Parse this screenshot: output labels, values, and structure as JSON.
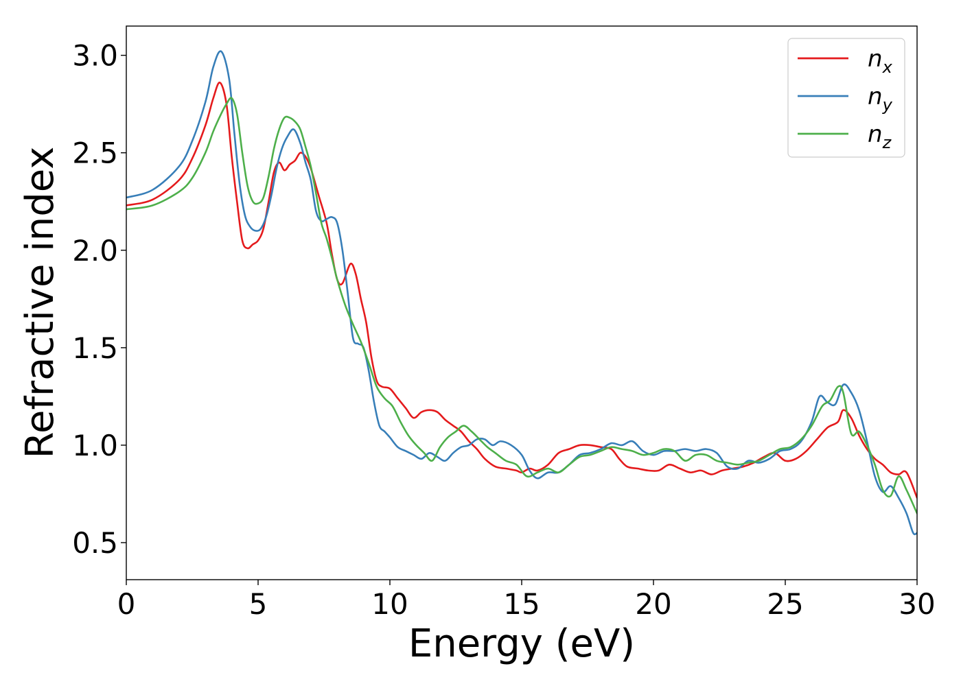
{
  "chart_data": {
    "type": "line",
    "title": "",
    "xlabel": "Energy (eV)",
    "ylabel": "Refractive index",
    "xlim": [
      0,
      30
    ],
    "ylim": [
      0.31,
      3.15
    ],
    "xticks": [
      0,
      5,
      10,
      15,
      20,
      25,
      30
    ],
    "xtick_labels": [
      "0",
      "5",
      "10",
      "15",
      "20",
      "25",
      "30"
    ],
    "yticks": [
      0.5,
      1.0,
      1.5,
      2.0,
      2.5,
      3.0
    ],
    "ytick_labels": [
      "0.5",
      "1.0",
      "1.5",
      "2.0",
      "2.5",
      "3.0"
    ],
    "grid": false,
    "legend_position": "top-right",
    "series": [
      {
        "name": "n",
        "subscript": "x",
        "color": "#e41a1c",
        "x": [
          0,
          1,
          2,
          2.5,
          3,
          3.3,
          3.55,
          3.8,
          4.0,
          4.2,
          4.4,
          4.6,
          4.8,
          5.0,
          5.2,
          5.4,
          5.6,
          5.8,
          6.0,
          6.2,
          6.4,
          6.6,
          6.8,
          7.0,
          7.3,
          7.6,
          7.8,
          8.0,
          8.2,
          8.5,
          8.7,
          8.9,
          9.1,
          9.3,
          9.5,
          9.7,
          10.0,
          10.3,
          10.6,
          10.9,
          11.2,
          11.5,
          11.8,
          12.1,
          12.4,
          12.7,
          13.0,
          13.3,
          13.6,
          14.0,
          14.4,
          14.8,
          15.0,
          15.3,
          15.6,
          16.0,
          16.4,
          16.8,
          17.2,
          17.6,
          18.0,
          18.4,
          18.7,
          19.0,
          19.4,
          19.8,
          20.2,
          20.6,
          21.0,
          21.4,
          21.8,
          22.2,
          22.6,
          23.0,
          23.4,
          23.8,
          24.2,
          24.6,
          25.0,
          25.4,
          25.8,
          26.2,
          26.6,
          27.0,
          27.2,
          27.5,
          27.8,
          28.1,
          28.4,
          28.7,
          29.0,
          29.3,
          29.6,
          30.0
        ],
        "y": [
          2.23,
          2.26,
          2.36,
          2.47,
          2.64,
          2.78,
          2.86,
          2.75,
          2.48,
          2.25,
          2.05,
          2.01,
          2.03,
          2.05,
          2.11,
          2.25,
          2.4,
          2.45,
          2.41,
          2.44,
          2.46,
          2.5,
          2.48,
          2.42,
          2.28,
          2.14,
          1.98,
          1.85,
          1.83,
          1.93,
          1.88,
          1.75,
          1.63,
          1.45,
          1.33,
          1.3,
          1.29,
          1.24,
          1.19,
          1.14,
          1.17,
          1.18,
          1.17,
          1.13,
          1.1,
          1.07,
          1.02,
          0.98,
          0.93,
          0.89,
          0.88,
          0.87,
          0.86,
          0.88,
          0.87,
          0.9,
          0.96,
          0.98,
          1.0,
          1.0,
          0.99,
          0.98,
          0.93,
          0.89,
          0.88,
          0.87,
          0.87,
          0.9,
          0.88,
          0.86,
          0.87,
          0.85,
          0.87,
          0.88,
          0.89,
          0.91,
          0.94,
          0.96,
          0.92,
          0.93,
          0.97,
          1.03,
          1.09,
          1.12,
          1.18,
          1.14,
          1.05,
          0.98,
          0.93,
          0.9,
          0.86,
          0.85,
          0.86,
          0.73
        ]
      },
      {
        "name": "n",
        "subscript": "y",
        "color": "#377eb8",
        "x": [
          0,
          1,
          2,
          2.5,
          3,
          3.3,
          3.6,
          3.9,
          4.1,
          4.3,
          4.5,
          4.7,
          4.9,
          5.1,
          5.3,
          5.5,
          5.7,
          5.9,
          6.1,
          6.35,
          6.6,
          6.8,
          7.0,
          7.2,
          7.4,
          7.6,
          7.8,
          8.0,
          8.2,
          8.4,
          8.6,
          8.8,
          9.0,
          9.2,
          9.4,
          9.6,
          9.8,
          10.0,
          10.3,
          10.6,
          10.9,
          11.2,
          11.5,
          11.8,
          12.1,
          12.4,
          12.7,
          13.0,
          13.3,
          13.6,
          13.9,
          14.2,
          14.6,
          15.0,
          15.3,
          15.6,
          16.0,
          16.4,
          16.8,
          17.2,
          17.6,
          18.0,
          18.4,
          18.8,
          19.2,
          19.6,
          20.0,
          20.4,
          20.8,
          21.2,
          21.6,
          22.0,
          22.4,
          22.8,
          23.2,
          23.6,
          24.0,
          24.4,
          24.8,
          25.2,
          25.6,
          26.0,
          26.3,
          26.6,
          26.9,
          27.2,
          27.5,
          27.8,
          28.1,
          28.4,
          28.7,
          29.0,
          29.3,
          29.6,
          29.85,
          30.0
        ],
        "y": [
          2.27,
          2.31,
          2.43,
          2.56,
          2.76,
          2.94,
          3.02,
          2.88,
          2.6,
          2.34,
          2.18,
          2.12,
          2.1,
          2.11,
          2.17,
          2.28,
          2.42,
          2.52,
          2.58,
          2.62,
          2.55,
          2.45,
          2.36,
          2.2,
          2.15,
          2.16,
          2.17,
          2.14,
          2.0,
          1.78,
          1.55,
          1.52,
          1.5,
          1.38,
          1.22,
          1.1,
          1.07,
          1.04,
          0.99,
          0.97,
          0.95,
          0.93,
          0.96,
          0.94,
          0.92,
          0.96,
          0.99,
          1.0,
          1.03,
          1.03,
          1.0,
          1.02,
          1.0,
          0.95,
          0.87,
          0.83,
          0.86,
          0.86,
          0.9,
          0.95,
          0.96,
          0.98,
          1.01,
          1.0,
          1.02,
          0.97,
          0.95,
          0.97,
          0.97,
          0.98,
          0.97,
          0.98,
          0.96,
          0.89,
          0.88,
          0.92,
          0.91,
          0.93,
          0.97,
          0.98,
          1.02,
          1.12,
          1.25,
          1.22,
          1.21,
          1.31,
          1.27,
          1.18,
          1.02,
          0.84,
          0.76,
          0.79,
          0.73,
          0.65,
          0.55,
          0.55
        ]
      },
      {
        "name": "n",
        "subscript": "z",
        "color": "#4daf4a",
        "x": [
          0,
          1,
          2,
          2.5,
          3,
          3.3,
          3.6,
          3.8,
          4.0,
          4.2,
          4.4,
          4.6,
          4.8,
          5.0,
          5.2,
          5.4,
          5.6,
          5.8,
          6.0,
          6.2,
          6.4,
          6.6,
          6.8,
          7.0,
          7.2,
          7.4,
          7.6,
          7.8,
          8.0,
          8.3,
          8.6,
          8.9,
          9.2,
          9.5,
          9.8,
          10.1,
          10.4,
          10.7,
          11.0,
          11.3,
          11.6,
          11.9,
          12.2,
          12.5,
          12.8,
          13.1,
          13.4,
          13.7,
          14.0,
          14.4,
          14.8,
          15.2,
          15.6,
          16.0,
          16.4,
          16.8,
          17.2,
          17.6,
          18.0,
          18.4,
          18.8,
          19.2,
          19.6,
          20.0,
          20.4,
          20.8,
          21.2,
          21.6,
          22.0,
          22.4,
          22.8,
          23.2,
          23.6,
          24.0,
          24.4,
          24.8,
          25.2,
          25.6,
          26.0,
          26.4,
          26.7,
          27.0,
          27.2,
          27.5,
          27.8,
          28.1,
          28.4,
          28.7,
          29.0,
          29.3,
          29.6,
          30.0
        ],
        "y": [
          2.21,
          2.23,
          2.3,
          2.37,
          2.5,
          2.61,
          2.7,
          2.75,
          2.78,
          2.7,
          2.5,
          2.33,
          2.25,
          2.24,
          2.27,
          2.38,
          2.52,
          2.62,
          2.68,
          2.68,
          2.66,
          2.62,
          2.53,
          2.43,
          2.29,
          2.14,
          2.06,
          1.96,
          1.85,
          1.72,
          1.62,
          1.53,
          1.42,
          1.3,
          1.24,
          1.2,
          1.12,
          1.05,
          1.0,
          0.96,
          0.92,
          0.99,
          1.04,
          1.07,
          1.1,
          1.07,
          1.03,
          0.99,
          0.96,
          0.92,
          0.9,
          0.84,
          0.86,
          0.88,
          0.86,
          0.9,
          0.94,
          0.95,
          0.97,
          0.99,
          0.98,
          0.97,
          0.95,
          0.96,
          0.98,
          0.97,
          0.92,
          0.95,
          0.95,
          0.92,
          0.91,
          0.9,
          0.91,
          0.92,
          0.95,
          0.98,
          0.99,
          1.03,
          1.1,
          1.2,
          1.23,
          1.3,
          1.27,
          1.06,
          1.07,
          1.0,
          0.9,
          0.77,
          0.74,
          0.84,
          0.77,
          0.65
        ]
      }
    ]
  }
}
